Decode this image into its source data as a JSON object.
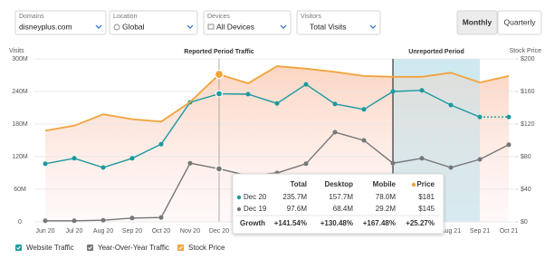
{
  "filters": [
    {
      "label": "Domains",
      "value": "disneyplus.com"
    },
    {
      "label": "Location",
      "value": "Global"
    },
    {
      "label": "Devices",
      "value": "All Devices"
    },
    {
      "label": "Visitors",
      "value": "Total Visits"
    }
  ],
  "buttons": [
    "Monthly",
    "Quarterly"
  ],
  "tooltip": {
    "headers": [
      "Total",
      "Desktop",
      "Mobile",
      "Price"
    ],
    "rows": [
      {
        "label": "Dec 20",
        "cells": [
          "235.7M",
          "157.7M",
          "78.0M",
          "$181"
        ]
      },
      {
        "label": "Dec 19",
        "cells": [
          "97.6M",
          "68.4M",
          "29.2M",
          "$145"
        ]
      },
      {
        "label": "Growth",
        "cells": [
          "+141.54%",
          "+130.48%",
          "+167.48%",
          "+25.27%"
        ]
      }
    ]
  },
  "chart_data": {
    "type": "line",
    "y_label": "Visits",
    "y2_label": "Stock Price",
    "categories": [
      "Jun 20",
      "Jul 20",
      "Aug 20",
      "Sep 20",
      "Oct 20",
      "Nov 20",
      "Dec 20",
      null,
      null,
      null,
      null,
      null,
      null,
      null,
      "Aug 21",
      "Sep 21",
      "Oct 21"
    ],
    "ylim": [
      0,
      300
    ],
    "yticks": [
      0,
      {
        "value": 60,
        "label": "60M"
      },
      {
        "value": 120,
        "label": "120M"
      },
      {
        "value": 180,
        "label": "180M"
      },
      {
        "value": 240,
        "label": "240M"
      },
      {
        "value": 300,
        "label": "300M"
      }
    ],
    "y2lim": [
      0,
      200
    ],
    "y2ticks": [
      {
        "value": 0,
        "label": "$0"
      },
      {
        "value": 40,
        "label": "$40"
      },
      {
        "value": 80,
        "label": "$80"
      },
      {
        "value": 120,
        "label": "$120"
      },
      {
        "value": 160,
        "label": "$160"
      },
      {
        "value": 200,
        "label": "$200"
      }
    ],
    "grid": true,
    "series": [
      {
        "name": "Website Traffic",
        "color": "#1b9aa0",
        "values": [
          107,
          117,
          100,
          117,
          143,
          220,
          235.7,
          235,
          218,
          253,
          217,
          207,
          240,
          242,
          215,
          193,
          193
        ]
      },
      {
        "name": "Year-Over-Year Traffic",
        "color": "#777777",
        "values": [
          2,
          2,
          3,
          7,
          8,
          108,
          97.6,
          85,
          90,
          107,
          165,
          150,
          108,
          117,
          100,
          115,
          142
        ]
      },
      {
        "name": "Stock Price",
        "color": "#f2a33a",
        "axis": "y2",
        "values": [
          112,
          118,
          132,
          126,
          123,
          147,
          181,
          170,
          191,
          188,
          184,
          179,
          178,
          178,
          183,
          171,
          179
        ]
      }
    ],
    "annotations": [
      {
        "text": "Reported Period Traffic",
        "category": 6
      },
      {
        "text": "Unreported Period",
        "from": 12,
        "to": 15
      }
    ]
  }
}
